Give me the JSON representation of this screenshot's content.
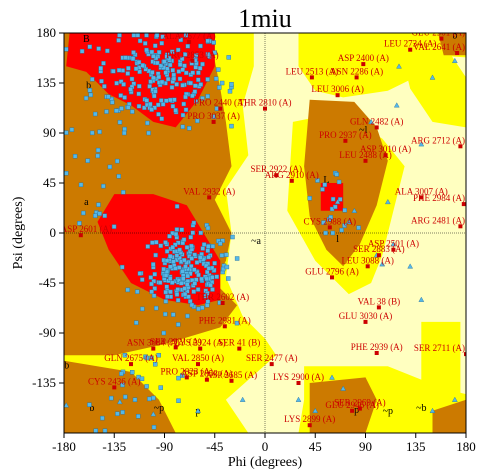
{
  "chart_data": {
    "type": "scatter",
    "title": "1miu",
    "xlabel": "Phi (degrees)",
    "ylabel": "Psi (degrees)",
    "xlim": [
      -180,
      180
    ],
    "ylim": [
      -180,
      180
    ],
    "x_ticks": [
      -180,
      -135,
      -90,
      -45,
      0,
      45,
      90,
      135,
      180
    ],
    "y_ticks": [
      -135,
      -90,
      -45,
      0,
      45,
      90,
      135,
      180
    ],
    "x_tick_labels": [
      "-180",
      "-135",
      "-90",
      "-45",
      "0",
      "45",
      "90",
      "135",
      "180"
    ],
    "y_tick_labels": [
      "-135",
      "-90",
      "-45",
      "0",
      "45",
      "90",
      "135",
      "180"
    ],
    "grid": false,
    "zero_lines": true,
    "colors": {
      "disallowed": "#ffffc0",
      "generous": "#ffff00",
      "allowed": "#cc7a00",
      "core": "#ff0000",
      "residue_point": "#55b8e8",
      "outlier_point": "#cc0000",
      "outlier_label": "#cc0000",
      "glycine_triangle": "#55b8e8"
    },
    "region_labels": [
      {
        "text": "B",
        "phi": -160,
        "psi": 172
      },
      {
        "text": "b",
        "phi": -158,
        "psi": 130
      },
      {
        "text": "a",
        "phi": -160,
        "psi": 25
      },
      {
        "text": "A",
        "phi": -83,
        "psi": -30
      },
      {
        "text": "~a",
        "phi": -8,
        "psi": -10
      },
      {
        "text": "L",
        "phi": 55,
        "psi": 45
      },
      {
        "text": "~l",
        "phi": 88,
        "psi": 90
      },
      {
        "text": "l",
        "phi": 65,
        "psi": -8
      },
      {
        "text": "~b",
        "phi": -180,
        "psi": -122
      },
      {
        "text": "b",
        "phi": -155,
        "psi": -160
      },
      {
        "text": "p",
        "phi": -60,
        "psi": -163
      },
      {
        "text": "p",
        "phi": 82,
        "psi": -162
      },
      {
        "text": "~p",
        "phi": -95,
        "psi": -160
      },
      {
        "text": "~b",
        "phi": 140,
        "psi": -160
      },
      {
        "text": "b",
        "phi": 170,
        "psi": 175
      },
      {
        "text": "~p",
        "phi": 110,
        "psi": -163
      }
    ],
    "outliers": [
      {
        "label": "ALA 2677 (A)",
        "phi": -68,
        "psi": 172
      },
      {
        "label": "PRO 2853 (A)",
        "phi": -65,
        "psi": 155
      },
      {
        "label": "GLU 2901 (A)",
        "phi": 158,
        "psi": 175
      },
      {
        "label": "LEU 2734 (A)",
        "phi": 130,
        "psi": 165
      },
      {
        "label": "VAL 2641 (A)",
        "phi": 172,
        "psi": 162
      },
      {
        "label": "ASP 2400 (A)",
        "phi": 88,
        "psi": 152
      },
      {
        "label": "LEU 2513 (A)",
        "phi": 42,
        "psi": 140
      },
      {
        "label": "ASN 2286 (A)",
        "phi": 82,
        "psi": 140
      },
      {
        "label": "LEU 3006 (A)",
        "phi": 65,
        "psi": 124
      },
      {
        "label": "PRO 2440 (A)",
        "phi": -40,
        "psi": 112
      },
      {
        "label": "THR 2810 (A)",
        "phi": 0,
        "psi": 112
      },
      {
        "label": "PRO 3037 (A)",
        "phi": -46,
        "psi": 100
      },
      {
        "label": "GLN 2482 (A)",
        "phi": 100,
        "psi": 95
      },
      {
        "label": "PRO 2937 (A)",
        "phi": 72,
        "psi": 83
      },
      {
        "label": "ARG 2712 (A)",
        "phi": 175,
        "psi": 78
      },
      {
        "label": "LEU 2488 (A)",
        "phi": 90,
        "psi": 65
      },
      {
        "label": "ASP 3010 (A)",
        "phi": 108,
        "psi": 70
      },
      {
        "label": "SER 2922 (A)",
        "phi": 10,
        "psi": 52
      },
      {
        "label": "ARG 2910 (A)",
        "phi": 24,
        "psi": 47
      },
      {
        "label": "VAL 2932 (A)",
        "phi": -50,
        "psi": 32
      },
      {
        "label": "ALA 3007 (A)",
        "phi": 140,
        "psi": 32
      },
      {
        "label": "PHE 2984 (A)",
        "phi": 178,
        "psi": 26
      },
      {
        "label": "ARG 2481 (A)",
        "phi": 175,
        "psi": 6
      },
      {
        "label": "CYS 2988 (A)",
        "phi": 58,
        "psi": 5
      },
      {
        "label": "ASP 2601 (A)",
        "phi": -165,
        "psi": -2
      },
      {
        "label": "ASP 2501 (A)",
        "phi": 115,
        "psi": -15
      },
      {
        "label": "SER 2883 (A)",
        "phi": 102,
        "psi": -20
      },
      {
        "label": "LEU 3088 (A)",
        "phi": 92,
        "psi": -30
      },
      {
        "label": "GLU 2796 (A)",
        "phi": 60,
        "psi": -40
      },
      {
        "label": "THR 2602 (A)",
        "phi": -38,
        "psi": -63
      },
      {
        "label": "VAL 38 (B)",
        "phi": 102,
        "psi": -67
      },
      {
        "label": "GLU 3030 (A)",
        "phi": 90,
        "psi": -80
      },
      {
        "label": "PHE 2981 (A)",
        "phi": -36,
        "psi": -84
      },
      {
        "label": "ASN 3084 (A)",
        "phi": -100,
        "psi": -104
      },
      {
        "label": "SER 2921 (A)",
        "phi": -80,
        "psi": -103
      },
      {
        "label": "LYS 2924 (A)",
        "phi": -58,
        "psi": -104
      },
      {
        "label": "SER 41 (B)",
        "phi": -23,
        "psi": -104
      },
      {
        "label": "PHE 2939 (A)",
        "phi": 100,
        "psi": -108
      },
      {
        "label": "SER 2711 (A)",
        "phi": 180,
        "psi": -109
      },
      {
        "label": "GLN 2675 (A)",
        "phi": -120,
        "psi": -118
      },
      {
        "label": "VAL 2850 (A)",
        "phi": -60,
        "psi": -118
      },
      {
        "label": "SER 2477 (A)",
        "phi": 6,
        "psi": -118
      },
      {
        "label": "PRO 2823 (A)",
        "phi": -70,
        "psi": -130
      },
      {
        "label": "ASP 2858 (A)",
        "phi": -52,
        "psi": -132
      },
      {
        "label": "ASP 2685 (A)",
        "phi": -30,
        "psi": -133
      },
      {
        "label": "CYS 2436 (A)",
        "phi": -135,
        "psi": -139
      },
      {
        "label": "LYS 2900 (A)",
        "phi": 30,
        "psi": -135
      },
      {
        "label": "SER 2969 (A)",
        "phi": 85,
        "psi": -158
      },
      {
        "label": "GLU 2946 (A)",
        "phi": 78,
        "psi": -160
      },
      {
        "label": "LYS 2899 (A)",
        "phi": 40,
        "psi": -173
      }
    ]
  }
}
